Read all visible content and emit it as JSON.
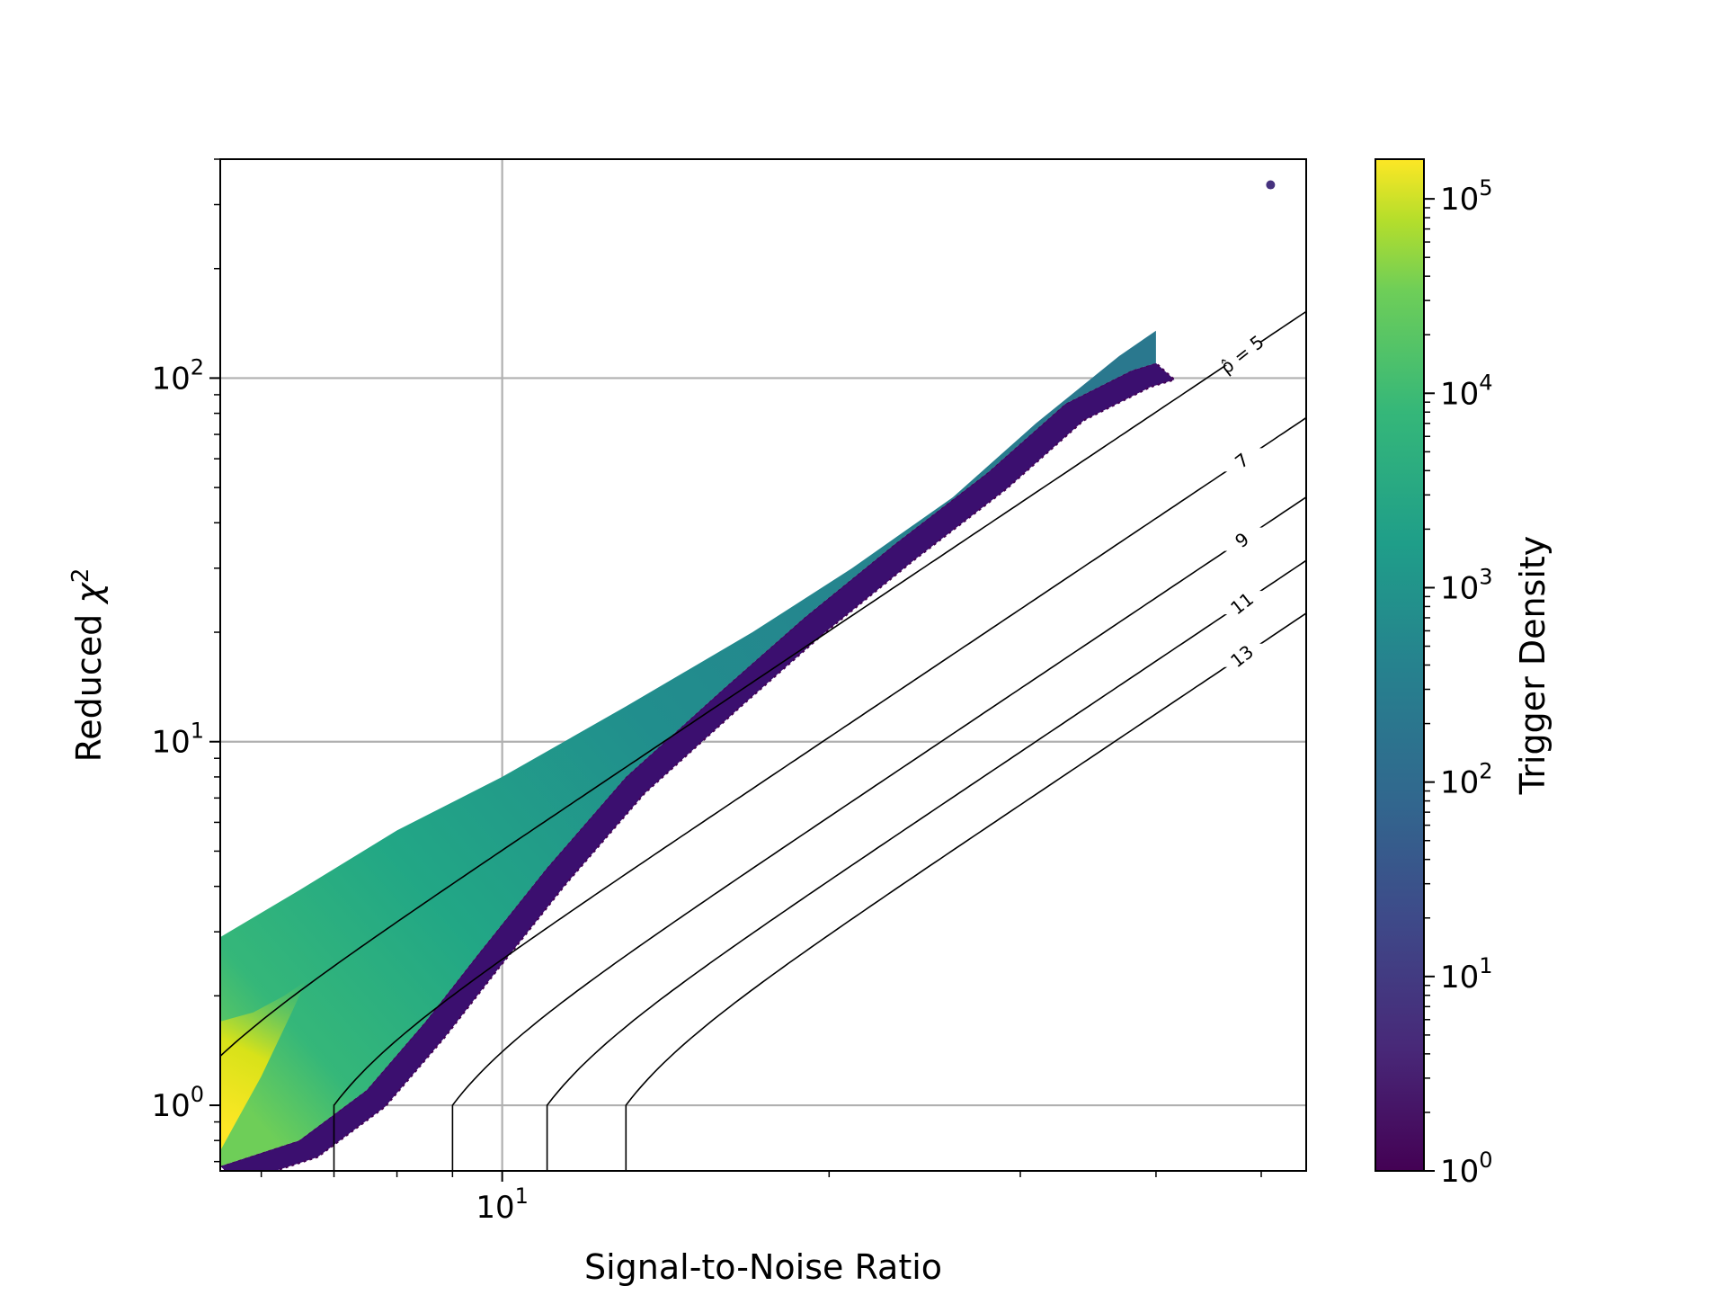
{
  "chart_data": {
    "type": "heatmap",
    "subtype": "hexbin",
    "title": "",
    "xlabel": "Signal-to-Noise Ratio",
    "ylabel_prefix": "Reduced ",
    "ylabel_symbol": "χ",
    "ylabel_exp": "2",
    "colorbar_label": "Trigger Density",
    "x_scale": "log",
    "y_scale": "log",
    "xlim": [
      5.5,
      55
    ],
    "ylim": [
      0.66,
      400
    ],
    "grid": true,
    "x_ticks": [
      {
        "value": 10,
        "base": "10",
        "exp": "1"
      }
    ],
    "y_ticks": [
      {
        "value": 1,
        "base": "10",
        "exp": "0"
      },
      {
        "value": 10,
        "base": "10",
        "exp": "1"
      },
      {
        "value": 100,
        "base": "10",
        "exp": "2"
      }
    ],
    "colorbar": {
      "scale": "log",
      "range": [
        1,
        160000
      ],
      "colormap": "viridis",
      "ticks": [
        {
          "value": 1,
          "base": "10",
          "exp": "0"
        },
        {
          "value": 10,
          "base": "10",
          "exp": "1"
        },
        {
          "value": 100,
          "base": "10",
          "exp": "2"
        },
        {
          "value": 1000,
          "base": "10",
          "exp": "3"
        },
        {
          "value": 10000,
          "base": "10",
          "exp": "4"
        },
        {
          "value": 100000,
          "base": "10",
          "exp": "5"
        }
      ]
    },
    "density_region": {
      "upper_edge": [
        [
          5.5,
          2.9
        ],
        [
          6.5,
          3.9
        ],
        [
          8,
          5.7
        ],
        [
          10,
          8.0
        ],
        [
          13,
          12.5
        ],
        [
          17,
          20
        ],
        [
          21,
          30
        ],
        [
          26,
          47
        ],
        [
          31,
          75
        ],
        [
          37,
          115
        ],
        [
          40,
          135
        ]
      ],
      "lower_edge": [
        [
          5.5,
          0.68
        ],
        [
          6.5,
          0.8
        ],
        [
          7.5,
          1.1
        ],
        [
          8.5,
          1.7
        ],
        [
          9.5,
          2.6
        ],
        [
          11,
          4.5
        ],
        [
          13,
          8
        ],
        [
          16,
          14
        ],
        [
          19,
          22
        ],
        [
          23,
          35
        ],
        [
          28,
          55
        ],
        [
          33,
          85
        ],
        [
          38,
          105
        ],
        [
          40,
          110
        ]
      ],
      "core_region": [
        [
          5.5,
          0.75
        ],
        [
          6.0,
          1.2
        ],
        [
          6.4,
          1.8
        ],
        [
          6.6,
          2.2
        ],
        [
          6.3,
          2.0
        ],
        [
          5.9,
          1.8
        ],
        [
          5.5,
          1.7
        ]
      ],
      "outlier_cluster": {
        "x": 51,
        "y": 340
      }
    },
    "contours": [
      {
        "label": "ρ̂ = 5",
        "rho": 5,
        "min_snr": 5.0,
        "label_x": 48
      },
      {
        "label": "7",
        "rho": 7,
        "min_snr": 7.0,
        "label_x": 48
      },
      {
        "label": "9",
        "rho": 9,
        "min_snr": 9.0,
        "label_x": 48
      },
      {
        "label": "11",
        "rho": 11,
        "min_snr": 11.0,
        "label_x": 48
      },
      {
        "label": "13",
        "rho": 13,
        "min_snr": 13.0,
        "label_x": 48
      }
    ]
  }
}
